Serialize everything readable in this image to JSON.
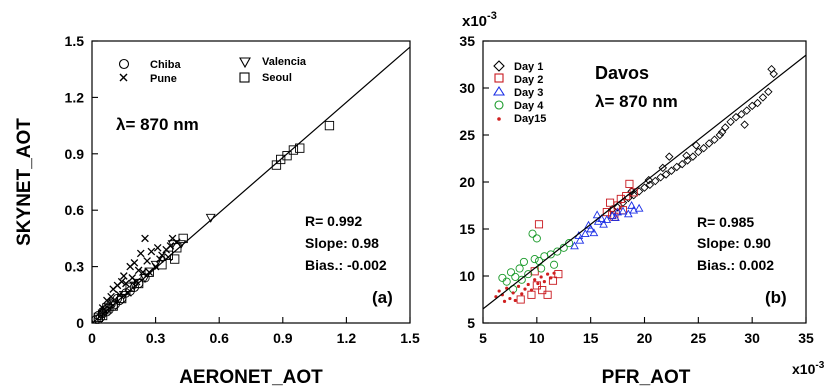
{
  "chart_data": [
    {
      "type": "scatter",
      "panel_label": "(a)",
      "xlabel": "AERONET_AOT",
      "ylabel": "SKYNET_AOT",
      "xlim": [
        0,
        1.5
      ],
      "ylim": [
        0,
        1.5
      ],
      "xticks": [
        "0",
        "0.3",
        "0.6",
        "0.9",
        "1.2",
        "1.5"
      ],
      "yticks": [
        "0",
        "0.3",
        "0.6",
        "0.9",
        "1.2",
        "1.5"
      ],
      "wavelength_label": "λ= 870 nm",
      "stats": [
        "R= 0.992",
        "Slope: 0.98",
        "Bias.: -0.002"
      ],
      "fit_line": {
        "slope": 0.98,
        "intercept": -0.002
      },
      "legend_position": "top",
      "series": [
        {
          "name": "Chiba",
          "marker": "circle",
          "points": [
            [
              0.02,
              0.02
            ],
            [
              0.03,
              0.04
            ],
            [
              0.05,
              0.05
            ],
            [
              0.04,
              0.03
            ],
            [
              0.06,
              0.07
            ],
            [
              0.08,
              0.07
            ],
            [
              0.09,
              0.1
            ],
            [
              0.11,
              0.1
            ],
            [
              0.12,
              0.13
            ],
            [
              0.14,
              0.13
            ],
            [
              0.16,
              0.16
            ],
            [
              0.18,
              0.17
            ],
            [
              0.07,
              0.06
            ],
            [
              0.1,
              0.09
            ],
            [
              0.13,
              0.12
            ],
            [
              0.2,
              0.19
            ],
            [
              0.22,
              0.21
            ],
            [
              0.25,
              0.24
            ],
            [
              0.05,
              0.06
            ],
            [
              0.03,
              0.02
            ]
          ]
        },
        {
          "name": "Pune",
          "marker": "x",
          "points": [
            [
              0.05,
              0.08
            ],
            [
              0.07,
              0.12
            ],
            [
              0.09,
              0.14
            ],
            [
              0.1,
              0.18
            ],
            [
              0.12,
              0.2
            ],
            [
              0.14,
              0.22
            ],
            [
              0.15,
              0.25
            ],
            [
              0.16,
              0.21
            ],
            [
              0.18,
              0.3
            ],
            [
              0.19,
              0.24
            ],
            [
              0.2,
              0.32
            ],
            [
              0.22,
              0.28
            ],
            [
              0.23,
              0.37
            ],
            [
              0.24,
              0.27
            ],
            [
              0.25,
              0.45
            ],
            [
              0.26,
              0.33
            ],
            [
              0.28,
              0.38
            ],
            [
              0.3,
              0.3
            ],
            [
              0.31,
              0.4
            ],
            [
              0.33,
              0.36
            ],
            [
              0.35,
              0.39
            ],
            [
              0.37,
              0.41
            ],
            [
              0.38,
              0.45
            ],
            [
              0.4,
              0.43
            ],
            [
              0.27,
              0.27
            ],
            [
              0.21,
              0.22
            ],
            [
              0.17,
              0.16
            ],
            [
              0.13,
              0.15
            ],
            [
              0.32,
              0.34
            ],
            [
              0.36,
              0.35
            ]
          ]
        },
        {
          "name": "Valencia",
          "marker": "triangle-down",
          "points": [
            [
              0.05,
              0.05
            ],
            [
              0.08,
              0.08
            ],
            [
              0.1,
              0.11
            ],
            [
              0.15,
              0.15
            ],
            [
              0.2,
              0.2
            ],
            [
              0.25,
              0.24
            ],
            [
              0.3,
              0.31
            ],
            [
              0.38,
              0.42
            ],
            [
              0.42,
              0.42
            ],
            [
              0.56,
              0.56
            ]
          ]
        },
        {
          "name": "Seoul",
          "marker": "square",
          "points": [
            [
              0.03,
              0.03
            ],
            [
              0.05,
              0.04
            ],
            [
              0.07,
              0.08
            ],
            [
              0.1,
              0.09
            ],
            [
              0.14,
              0.13
            ],
            [
              0.18,
              0.19
            ],
            [
              0.22,
              0.21
            ],
            [
              0.27,
              0.27
            ],
            [
              0.33,
              0.31
            ],
            [
              0.36,
              0.36
            ],
            [
              0.39,
              0.34
            ],
            [
              0.4,
              0.4
            ],
            [
              0.43,
              0.45
            ],
            [
              0.87,
              0.84
            ],
            [
              0.89,
              0.87
            ],
            [
              0.92,
              0.89
            ],
            [
              0.95,
              0.92
            ],
            [
              0.98,
              0.93
            ],
            [
              1.12,
              1.05
            ]
          ]
        }
      ]
    },
    {
      "type": "scatter",
      "panel_label": "(b)",
      "xlabel": "PFR_AOT",
      "ylabel": "",
      "x_scale_label": "x10",
      "y_scale_label": "x10",
      "scale_exponent": "-3",
      "xlim": [
        5,
        35
      ],
      "ylim": [
        5,
        35
      ],
      "xticks": [
        "5",
        "10",
        "15",
        "20",
        "25",
        "30",
        "35"
      ],
      "yticks": [
        "5",
        "10",
        "15",
        "20",
        "25",
        "30",
        "35"
      ],
      "location_label": "Davos",
      "wavelength_label": "λ= 870 nm",
      "stats": [
        "R= 0.985",
        "Slope: 0.90",
        "Bias.: 0.002"
      ],
      "fit_line": {
        "slope": 0.9,
        "intercept": 2.0
      },
      "legend_position": "top-left",
      "series": [
        {
          "name": "Day 1",
          "marker": "diamond",
          "color": "#000000",
          "points": [
            [
              17.0,
              17.1
            ],
            [
              17.5,
              17.3
            ],
            [
              18.0,
              17.8
            ],
            [
              18.5,
              18.3
            ],
            [
              19.0,
              18.6
            ],
            [
              19.5,
              19.0
            ],
            [
              20.0,
              19.4
            ],
            [
              20.5,
              19.7
            ],
            [
              21.0,
              20.1
            ],
            [
              21.5,
              20.5
            ],
            [
              22.0,
              20.8
            ],
            [
              22.5,
              21.2
            ],
            [
              23.0,
              21.6
            ],
            [
              23.5,
              21.9
            ],
            [
              24.0,
              22.3
            ],
            [
              24.5,
              22.7
            ],
            [
              25.0,
              23.2
            ],
            [
              25.5,
              23.6
            ],
            [
              26.0,
              24.1
            ],
            [
              26.5,
              24.5
            ],
            [
              27.0,
              25.0
            ],
            [
              27.5,
              25.8
            ],
            [
              28.0,
              26.4
            ],
            [
              28.5,
              26.9
            ],
            [
              29.0,
              27.2
            ],
            [
              29.5,
              27.6
            ],
            [
              30.0,
              28.1
            ],
            [
              30.5,
              28.4
            ],
            [
              31.0,
              29.0
            ],
            [
              31.5,
              29.6
            ],
            [
              32.0,
              31.5
            ],
            [
              31.8,
              32.0
            ],
            [
              29.3,
              26.1
            ],
            [
              27.2,
              25.3
            ],
            [
              21.7,
              21.5
            ],
            [
              23.9,
              22.8
            ],
            [
              22.3,
              22.7
            ],
            [
              24.8,
              23.9
            ],
            [
              20.4,
              20.2
            ],
            [
              18.8,
              19.0
            ]
          ]
        },
        {
          "name": "Day 2",
          "marker": "square",
          "color": "#c8181e",
          "points": [
            [
              8.5,
              7.5
            ],
            [
              9.5,
              8.0
            ],
            [
              10.0,
              9.0
            ],
            [
              10.5,
              8.5
            ],
            [
              11.0,
              8.0
            ],
            [
              11.5,
              9.5
            ],
            [
              10.2,
              15.5
            ],
            [
              16.5,
              16.8
            ],
            [
              17.0,
              16.5
            ],
            [
              17.5,
              17.5
            ],
            [
              18.0,
              17.0
            ],
            [
              18.3,
              18.5
            ],
            [
              18.6,
              19.8
            ],
            [
              17.8,
              18.2
            ],
            [
              16.8,
              17.8
            ],
            [
              19.0,
              18.9
            ],
            [
              17.2,
              16.3
            ],
            [
              12.0,
              10.2
            ],
            [
              9.8,
              10.5
            ]
          ]
        },
        {
          "name": "Day 3",
          "marker": "triangle-up",
          "color": "#1a2ee6",
          "points": [
            [
              13.5,
              13.2
            ],
            [
              14.0,
              13.8
            ],
            [
              14.5,
              14.5
            ],
            [
              15.0,
              15.0
            ],
            [
              15.3,
              14.6
            ],
            [
              15.7,
              15.8
            ],
            [
              16.0,
              16.1
            ],
            [
              16.5,
              16.0
            ],
            [
              17.0,
              16.4
            ],
            [
              17.5,
              16.8
            ],
            [
              18.0,
              16.9
            ],
            [
              18.5,
              16.6
            ],
            [
              19.0,
              17.0
            ],
            [
              19.5,
              17.2
            ],
            [
              15.6,
              16.5
            ],
            [
              14.8,
              15.4
            ],
            [
              16.2,
              15.5
            ],
            [
              17.3,
              16.2
            ],
            [
              18.8,
              17.5
            ],
            [
              13.9,
              14.3
            ]
          ]
        },
        {
          "name": "Day 4",
          "marker": "circle",
          "color": "#1a9a2a",
          "points": [
            [
              6.8,
              9.8
            ],
            [
              7.2,
              9.4
            ],
            [
              7.6,
              10.4
            ],
            [
              8.0,
              9.9
            ],
            [
              8.4,
              10.8
            ],
            [
              8.8,
              11.5
            ],
            [
              9.2,
              10.2
            ],
            [
              9.8,
              11.8
            ],
            [
              10.2,
              11.6
            ],
            [
              10.7,
              12.1
            ],
            [
              11.3,
              12.3
            ],
            [
              11.9,
              12.6
            ],
            [
              12.5,
              13.0
            ],
            [
              13.0,
              13.5
            ],
            [
              9.6,
              14.5
            ],
            [
              10.0,
              14.0
            ],
            [
              7.8,
              8.6
            ],
            [
              8.6,
              9.6
            ],
            [
              10.4,
              10.8
            ],
            [
              11.6,
              11.2
            ]
          ]
        },
        {
          "name": "Day15",
          "marker": "dot",
          "color": "#d02020",
          "points": [
            [
              6.2,
              7.8
            ],
            [
              6.5,
              8.4
            ],
            [
              6.8,
              8.0
            ],
            [
              7.0,
              7.3
            ],
            [
              7.2,
              8.7
            ],
            [
              7.5,
              7.6
            ],
            [
              7.8,
              8.2
            ],
            [
              8.0,
              7.4
            ],
            [
              8.3,
              8.9
            ],
            [
              8.6,
              8.1
            ],
            [
              8.9,
              8.6
            ],
            [
              9.2,
              9.1
            ],
            [
              9.5,
              8.5
            ],
            [
              9.8,
              9.6
            ],
            [
              10.1,
              9.2
            ],
            [
              10.4,
              9.9
            ],
            [
              10.7,
              9.4
            ],
            [
              11.0,
              10.2
            ],
            [
              11.3,
              9.8
            ],
            [
              11.6,
              10.3
            ]
          ]
        }
      ]
    }
  ]
}
